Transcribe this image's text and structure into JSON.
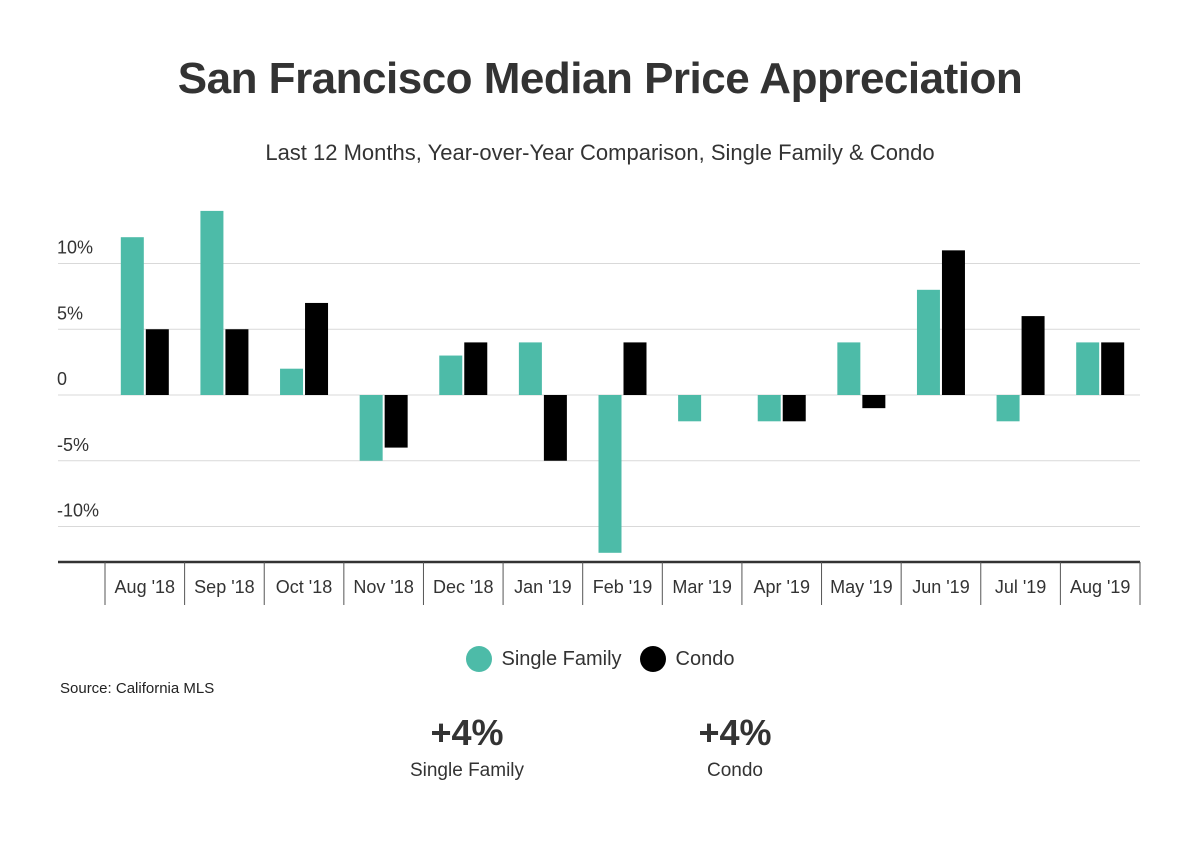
{
  "header": {
    "title": "San Francisco Median Price Appreciation",
    "subtitle": "Last 12 Months, Year-over-Year Comparison, Single Family & Condo"
  },
  "chart_data": {
    "type": "bar",
    "categories": [
      "Aug '18",
      "Sep '18",
      "Oct '18",
      "Nov '18",
      "Dec '18",
      "Jan '19",
      "Feb '19",
      "Mar '19",
      "Apr '19",
      "May '19",
      "Jun '19",
      "Jul '19",
      "Aug '19"
    ],
    "series": [
      {
        "name": "Single Family",
        "color": "#4dbba8",
        "values": [
          12,
          14,
          2,
          -5,
          3,
          4,
          -12,
          -2,
          -2,
          4,
          8,
          -2,
          4
        ]
      },
      {
        "name": "Condo",
        "color": "#000000",
        "values": [
          5,
          5,
          7,
          -4,
          4,
          -5,
          4,
          0,
          -2,
          -1,
          11,
          6,
          4
        ]
      }
    ],
    "y_ticks": [
      {
        "value": 10,
        "label": "10%"
      },
      {
        "value": 5,
        "label": "5%"
      },
      {
        "value": 0,
        "label": "0"
      },
      {
        "value": -5,
        "label": "-5%"
      },
      {
        "value": -10,
        "label": "-10%"
      }
    ],
    "ylim": [
      -12.7,
      14.7
    ],
    "grid": true,
    "legend_position": "bottom"
  },
  "legend": {
    "items": [
      {
        "label": "Single Family",
        "color": "#4dbba8"
      },
      {
        "label": "Condo",
        "color": "#000000"
      }
    ]
  },
  "source": "Source:  California MLS",
  "summary": {
    "single_family": {
      "value": "+4%",
      "label": "Single Family"
    },
    "condo": {
      "value": "+4%",
      "label": "Condo"
    }
  }
}
